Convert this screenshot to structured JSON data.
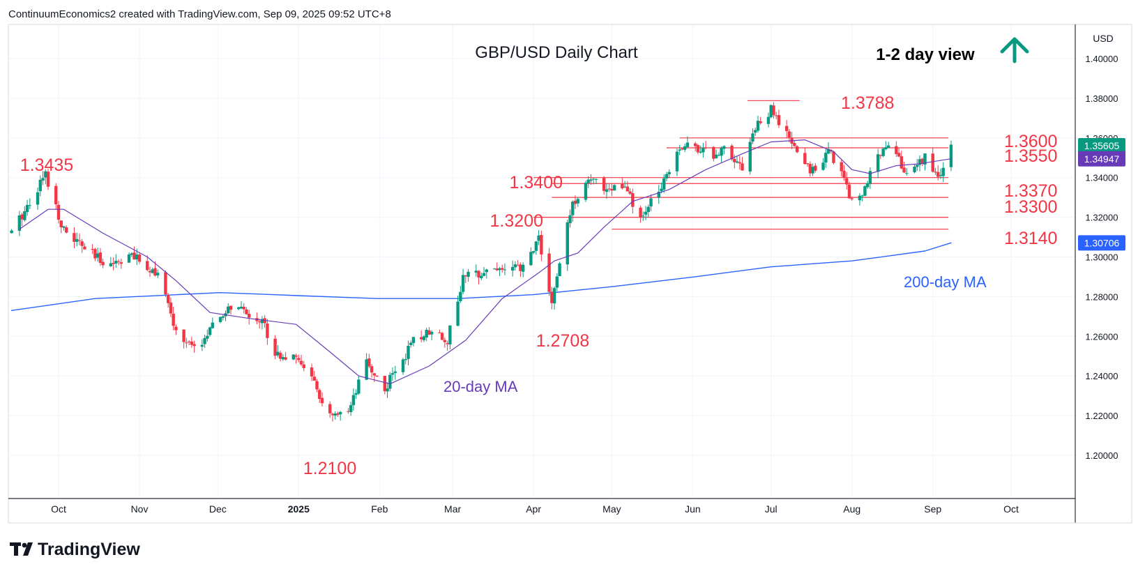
{
  "header": {
    "attribution": "ContinuumEconomics2 created with TradingView.com, Sep 09, 2025 09:52 UTC+8"
  },
  "footer": {
    "brand": "TradingView"
  },
  "colors": {
    "up": "#089981",
    "down": "#f23645",
    "ma20": "#673ab7",
    "ma200": "#2962ff",
    "annotation": "#f23645",
    "view_arrow": "#089981",
    "last_price_bg": "#089981",
    "ma20_label_bg": "#673ab7",
    "ma200_label_bg": "#2962ff"
  },
  "chart_data": {
    "type": "candlestick",
    "title": "GBP/USD Daily Chart",
    "subtitle": "1-2 day view",
    "view_direction": "up",
    "currency_label": "USD",
    "ylim": [
      1.187,
      1.4175
    ],
    "y_ticks": [
      "1.20000",
      "1.22000",
      "1.24000",
      "1.26000",
      "1.28000",
      "1.30000",
      "1.32000",
      "1.34000",
      "1.36000",
      "1.38000",
      "1.40000"
    ],
    "x_ticks": [
      "Oct",
      "Nov",
      "Dec",
      "2025",
      "Feb",
      "Mar",
      "Apr",
      "May",
      "Jun",
      "Jul",
      "Aug",
      "Sep",
      "Oct"
    ],
    "price_labels": {
      "last": "1.35605",
      "ma20": "1.34947",
      "ma200": "1.30706"
    },
    "annotations": [
      "1.3435",
      "1.2100",
      "1.2708",
      "1.3200",
      "1.3400",
      "1.3788",
      "1.3600",
      "1.3550",
      "1.3370",
      "1.3300",
      "1.3140",
      "20-day MA",
      "200-day MA"
    ],
    "levels": [
      {
        "label": "1.3788",
        "value": 1.3788
      },
      {
        "label": "1.3600",
        "value": 1.36
      },
      {
        "label": "1.3550",
        "value": 1.355
      },
      {
        "label": "1.3400",
        "value": 1.34
      },
      {
        "label": "1.3370",
        "value": 1.337
      },
      {
        "label": "1.3300",
        "value": 1.33
      },
      {
        "label": "1.3200",
        "value": 1.32
      },
      {
        "label": "1.3140",
        "value": 1.314
      }
    ],
    "anchors": [
      [
        "2024-09-13",
        1.312
      ],
      [
        "2024-09-26",
        1.342
      ],
      [
        "2024-10-03",
        1.313
      ],
      [
        "2024-10-16",
        1.299
      ],
      [
        "2024-10-22",
        1.297
      ],
      [
        "2024-10-28",
        1.301
      ],
      [
        "2024-11-08",
        1.292
      ],
      [
        "2024-11-15",
        1.262
      ],
      [
        "2024-11-22",
        1.253
      ],
      [
        "2024-12-02",
        1.269
      ],
      [
        "2024-12-06",
        1.275
      ],
      [
        "2024-12-18",
        1.268
      ],
      [
        "2024-12-23",
        1.252
      ],
      [
        "2025-01-03",
        1.246
      ],
      [
        "2025-01-13",
        1.219
      ],
      [
        "2025-01-20",
        1.22
      ],
      [
        "2025-01-27",
        1.247
      ],
      [
        "2025-02-03",
        1.233
      ],
      [
        "2025-02-07",
        1.243
      ],
      [
        "2025-02-14",
        1.257
      ],
      [
        "2025-02-21",
        1.264
      ],
      [
        "2025-02-27",
        1.258
      ],
      [
        "2025-03-05",
        1.289
      ],
      [
        "2025-03-14",
        1.294
      ],
      [
        "2025-03-28",
        1.294
      ],
      [
        "2025-04-03",
        1.31
      ],
      [
        "2025-04-08",
        1.276
      ],
      [
        "2025-04-15",
        1.323
      ],
      [
        "2025-04-21",
        1.339
      ],
      [
        "2025-04-29",
        1.335
      ],
      [
        "2025-05-06",
        1.335
      ],
      [
        "2025-05-12",
        1.318
      ],
      [
        "2025-05-20",
        1.337
      ],
      [
        "2025-05-27",
        1.356
      ],
      [
        "2025-06-05",
        1.355
      ],
      [
        "2025-06-10",
        1.35
      ],
      [
        "2025-06-13",
        1.357
      ],
      [
        "2025-06-20",
        1.345
      ],
      [
        "2025-06-24",
        1.363
      ],
      [
        "2025-07-01",
        1.374
      ],
      [
        "2025-07-08",
        1.359
      ],
      [
        "2025-07-16",
        1.343
      ],
      [
        "2025-07-23",
        1.353
      ],
      [
        "2025-07-28",
        1.344
      ],
      [
        "2025-08-01",
        1.328
      ],
      [
        "2025-08-06",
        1.334
      ],
      [
        "2025-08-13",
        1.357
      ],
      [
        "2025-08-18",
        1.353
      ],
      [
        "2025-08-22",
        1.34
      ],
      [
        "2025-08-29",
        1.351
      ],
      [
        "2025-09-03",
        1.339
      ],
      [
        "2025-09-08",
        1.356
      ]
    ],
    "ma20_path": [
      [
        "2024-09-16",
        1.314
      ],
      [
        "2024-09-27",
        1.324
      ],
      [
        "2024-10-03",
        1.324
      ],
      [
        "2024-10-18",
        1.312
      ],
      [
        "2024-11-04",
        1.3
      ],
      [
        "2024-11-15",
        1.288
      ],
      [
        "2024-11-28",
        1.272
      ],
      [
        "2024-12-13",
        1.269
      ],
      [
        "2024-12-31",
        1.266
      ],
      [
        "2025-01-14",
        1.251
      ],
      [
        "2025-01-24",
        1.24
      ],
      [
        "2025-02-05",
        1.236
      ],
      [
        "2025-02-20",
        1.245
      ],
      [
        "2025-03-06",
        1.258
      ],
      [
        "2025-03-20",
        1.279
      ],
      [
        "2025-04-03",
        1.292
      ],
      [
        "2025-04-09",
        1.298
      ],
      [
        "2025-04-18",
        1.302
      ],
      [
        "2025-04-28",
        1.315
      ],
      [
        "2025-05-09",
        1.328
      ],
      [
        "2025-05-23",
        1.334
      ],
      [
        "2025-06-06",
        1.344
      ],
      [
        "2025-06-20",
        1.352
      ],
      [
        "2025-07-01",
        1.358
      ],
      [
        "2025-07-14",
        1.359
      ],
      [
        "2025-07-25",
        1.353
      ],
      [
        "2025-08-01",
        1.344
      ],
      [
        "2025-08-08",
        1.342
      ],
      [
        "2025-08-18",
        1.346
      ],
      [
        "2025-08-27",
        1.347
      ],
      [
        "2025-09-08",
        1.3495
      ]
    ],
    "ma200_path": [
      [
        "2024-09-13",
        1.273
      ],
      [
        "2024-10-15",
        1.279
      ],
      [
        "2024-12-02",
        1.282
      ],
      [
        "2025-01-01",
        1.2805
      ],
      [
        "2025-01-31",
        1.279
      ],
      [
        "2025-03-03",
        1.279
      ],
      [
        "2025-04-01",
        1.281
      ],
      [
        "2025-05-01",
        1.285
      ],
      [
        "2025-06-02",
        1.29
      ],
      [
        "2025-07-01",
        1.295
      ],
      [
        "2025-08-01",
        1.298
      ],
      [
        "2025-08-29",
        1.303
      ],
      [
        "2025-09-08",
        1.3071
      ]
    ]
  }
}
